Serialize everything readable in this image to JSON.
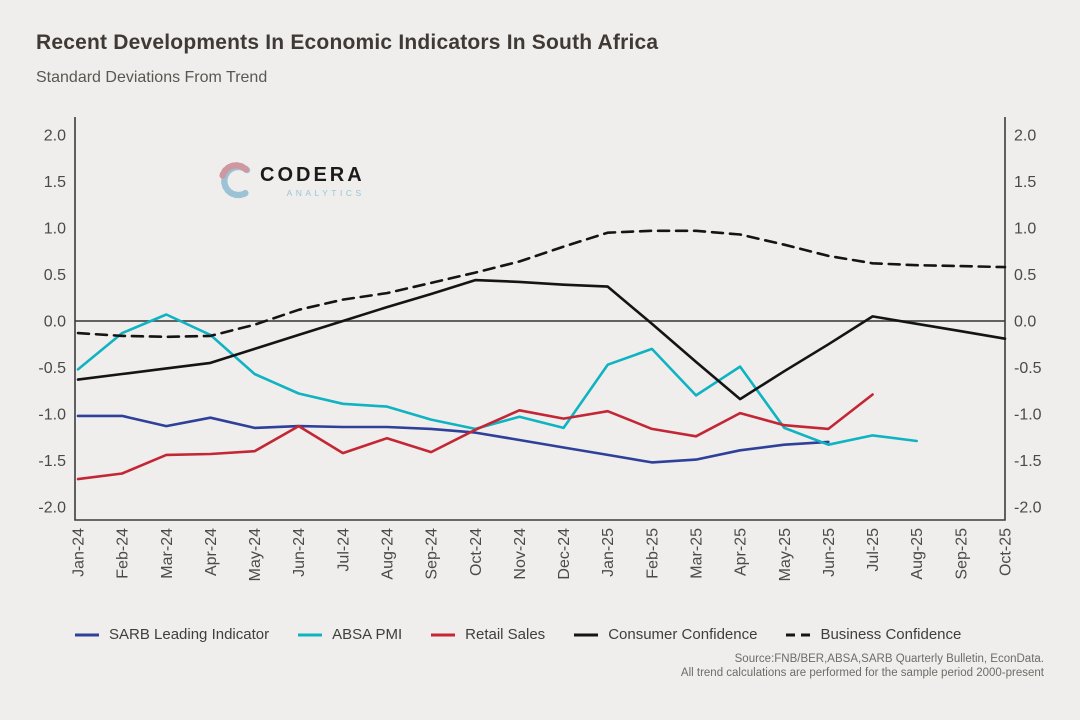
{
  "page": {
    "title": "Recent Developments In Economic Indicators In South Africa",
    "subtitle": "Standard Deviations From Trend"
  },
  "logo": {
    "name": "CODERA",
    "sub": "ANALYTICS"
  },
  "source": {
    "line1": "Source:FNB/BER,ABSA,SARB Quarterly Bulletin, EconData.",
    "line2": "All trend calculations are performed for the sample period 2000-present"
  },
  "colors": {
    "background": "#f0eeec",
    "axis": "#3c3c3c",
    "zero_line": "#4d4d4d",
    "tick_label": "#4a4a4a",
    "sarb_blue": "#2e4099",
    "pmi_cyan": "#0fb3c2",
    "retail_red": "#c32735",
    "confidence_black": "#141414"
  },
  "chart_data": {
    "type": "line",
    "title": "Recent Developments In Economic Indicators In South Africa",
    "subtitle": "Standard Deviations From Trend",
    "ylabel": "Standard deviations from trend",
    "ylim": [
      -2.15,
      2.2
    ],
    "y_ticks": [
      2.0,
      1.5,
      1.0,
      0.5,
      0.0,
      -0.5,
      -1.0,
      -1.5,
      -2.0
    ],
    "grid": false,
    "zero_line": true,
    "legend_position": "bottom",
    "categories": [
      "Jan-24",
      "Feb-24",
      "Mar-24",
      "Apr-24",
      "May-24",
      "Jun-24",
      "Jul-24",
      "Aug-24",
      "Sep-24",
      "Oct-24",
      "Nov-24",
      "Dec-24",
      "Jan-25",
      "Feb-25",
      "Mar-25",
      "Apr-25",
      "May-25",
      "Jun-25",
      "Jul-25",
      "Aug-25",
      "Sep-25",
      "Oct-25"
    ],
    "series": [
      {
        "name": "SARB Leading Indicator",
        "color": "#2e4099",
        "dash": "solid",
        "values": [
          -1.02,
          -1.02,
          -1.13,
          -1.04,
          -1.15,
          -1.13,
          -1.14,
          -1.14,
          -1.16,
          -1.2,
          -1.28,
          -1.36,
          -1.44,
          -1.52,
          -1.49,
          -1.39,
          -1.33,
          -1.3,
          null,
          null,
          null,
          null
        ]
      },
      {
        "name": "ABSA PMI",
        "color": "#0fb3c2",
        "dash": "solid",
        "values": [
          -0.52,
          -0.13,
          0.07,
          -0.15,
          -0.57,
          -0.78,
          -0.89,
          -0.92,
          -1.06,
          -1.16,
          -1.03,
          -1.15,
          -0.47,
          -0.3,
          -0.8,
          -0.49,
          -1.15,
          -1.33,
          -1.23,
          -1.29,
          null,
          null
        ]
      },
      {
        "name": "Retail Sales",
        "color": "#c32735",
        "dash": "solid",
        "values": [
          -1.7,
          -1.64,
          -1.44,
          -1.43,
          -1.4,
          -1.13,
          -1.42,
          -1.26,
          -1.41,
          -1.17,
          -0.96,
          -1.05,
          -0.97,
          -1.16,
          -1.24,
          -0.99,
          -1.12,
          -1.16,
          -0.79,
          null,
          null,
          null
        ]
      },
      {
        "name": "Consumer Confidence",
        "color": "#141414",
        "dash": "solid",
        "values": [
          -0.63,
          -0.57,
          -0.51,
          -0.45,
          -0.3,
          -0.15,
          0.0,
          0.15,
          0.29,
          0.44,
          0.42,
          0.39,
          0.37,
          -0.03,
          -0.44,
          -0.84,
          -0.54,
          -0.25,
          0.05,
          -0.03,
          -0.11,
          -0.19
        ]
      },
      {
        "name": "Business Confidence",
        "color": "#141414",
        "dash": "dashed",
        "values": [
          -0.13,
          -0.16,
          -0.17,
          -0.16,
          -0.04,
          0.12,
          0.23,
          0.3,
          0.41,
          0.52,
          0.64,
          0.8,
          0.95,
          0.97,
          0.97,
          0.93,
          0.82,
          0.7,
          0.62,
          0.6,
          0.59,
          0.58
        ]
      }
    ]
  }
}
